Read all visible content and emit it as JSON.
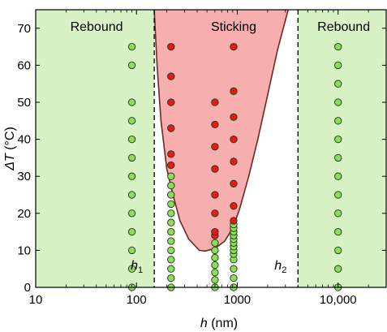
{
  "chart_data": {
    "type": "scatter",
    "xscale": "log",
    "xlim": [
      10,
      30000
    ],
    "ylim": [
      0,
      75
    ],
    "xlabel_var": "h",
    "xlabel_unit": " (nm)",
    "ylabel_var": "ΔT",
    "ylabel_unit": " (°C)",
    "xticks": [
      10,
      100,
      1000,
      10000
    ],
    "xtick_labels": [
      "10",
      "100",
      "1000",
      "10,000"
    ],
    "yticks": [
      0,
      10,
      20,
      30,
      40,
      50,
      60,
      70
    ],
    "ytick_labels": [
      "0",
      "10",
      "20",
      "30",
      "40",
      "50",
      "60",
      "70"
    ],
    "region_labels": [
      "Rebound",
      "Sticking",
      "Rebound"
    ],
    "thresholds": [
      {
        "var": "h",
        "sub": "1",
        "x": 150
      },
      {
        "var": "h",
        "sub": "2",
        "x": 4000
      }
    ],
    "sticking_boundary": {
      "left": [
        [
          150,
          75
        ],
        [
          160,
          60
        ],
        [
          175,
          45
        ],
        [
          200,
          32
        ],
        [
          230,
          25
        ],
        [
          270,
          18
        ],
        [
          330,
          13
        ],
        [
          420,
          10
        ],
        [
          480,
          9.8
        ]
      ],
      "right": [
        [
          480,
          9.8
        ],
        [
          600,
          10.5
        ],
        [
          750,
          12.5
        ],
        [
          900,
          16
        ],
        [
          1050,
          21
        ],
        [
          1300,
          30
        ],
        [
          1600,
          40
        ],
        [
          2000,
          52
        ],
        [
          2500,
          64
        ],
        [
          3200,
          75
        ]
      ]
    },
    "colors": {
      "rebound": "#d7f2c5",
      "sticking": "#f7aeae",
      "boundary": "#6b2a22",
      "rebound_point": "#8fdc5d",
      "sticking_point": "#e8191b",
      "point_edge": "#1a3a10"
    },
    "series": [
      {
        "category": "rebound",
        "x": 90,
        "y": [
          0,
          5,
          10,
          15,
          20,
          25,
          30,
          35,
          40,
          45,
          50,
          60,
          65
        ]
      },
      {
        "category": "rebound",
        "x": 10000,
        "y": [
          0,
          5,
          10,
          15,
          20,
          25,
          30,
          35,
          40,
          45,
          50,
          55,
          60,
          65
        ]
      },
      {
        "category": "rebound",
        "x": 220,
        "y": [
          0,
          2.5,
          5,
          7.5,
          10,
          12.5,
          15,
          17.5,
          20,
          22.5,
          25,
          27.5,
          30
        ]
      },
      {
        "category": "sticking",
        "x": 220,
        "y": [
          33,
          36,
          43,
          50,
          57,
          65
        ]
      },
      {
        "category": "rebound",
        "x": 600,
        "y": [
          0,
          2,
          4,
          6,
          8,
          10,
          12
        ]
      },
      {
        "category": "sticking",
        "x": 600,
        "y": [
          14,
          15,
          20,
          25,
          32,
          38,
          44,
          50
        ]
      },
      {
        "category": "rebound",
        "x": 920,
        "y": [
          0,
          2.5,
          5,
          7.5,
          9,
          10,
          11,
          12,
          13,
          14,
          15,
          16,
          17
        ]
      },
      {
        "category": "sticking",
        "x": 920,
        "y": [
          18,
          22,
          28,
          34,
          40,
          46,
          53,
          65
        ]
      }
    ]
  }
}
